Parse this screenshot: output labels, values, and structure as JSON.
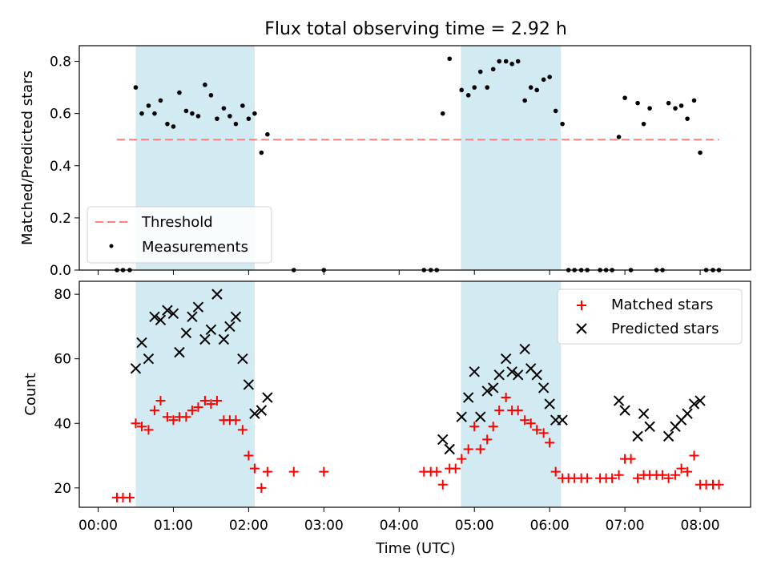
{
  "chart_data": [
    {
      "type": "scatter",
      "title": "Flux total observing time = 2.92 h",
      "ylabel": "Matched/Predicted stars",
      "xlabel": "",
      "xlim": [
        -0.25,
        8.67
      ],
      "ylim": [
        0,
        0.86
      ],
      "yticks": [
        0.0,
        0.2,
        0.4,
        0.6,
        0.8
      ],
      "ytick_labels": [
        "0.0",
        "0.2",
        "0.4",
        "0.6",
        "0.8"
      ],
      "shaded_intervals": [
        [
          0.5,
          2.08
        ],
        [
          4.82,
          6.15
        ]
      ],
      "shade_color": "#add8e6",
      "threshold": {
        "name": "Threshold",
        "value": 0.5,
        "x_range": [
          0.25,
          8.25
        ],
        "color": "#ff7f7f"
      },
      "series": [
        {
          "name": "Measurements",
          "color": "#000000",
          "x": [
            0.25,
            0.33,
            0.42,
            0.5,
            0.58,
            0.67,
            0.75,
            0.83,
            0.92,
            1.0,
            1.08,
            1.17,
            1.25,
            1.33,
            1.42,
            1.5,
            1.58,
            1.67,
            1.75,
            1.83,
            1.92,
            2.0,
            2.08,
            2.17,
            2.25,
            2.6,
            3.0,
            4.33,
            4.42,
            4.5,
            4.58,
            4.67,
            4.83,
            4.92,
            5.0,
            5.08,
            5.17,
            5.25,
            5.33,
            5.42,
            5.5,
            5.58,
            5.67,
            5.75,
            5.83,
            5.92,
            6.0,
            6.08,
            6.17,
            6.25,
            6.33,
            6.42,
            6.5,
            6.67,
            6.75,
            6.83,
            6.92,
            7.0,
            7.08,
            7.17,
            7.25,
            7.33,
            7.42,
            7.5,
            7.58,
            7.67,
            7.75,
            7.83,
            7.92,
            8.0,
            8.08,
            8.17,
            8.25
          ],
          "y": [
            0,
            0,
            0,
            0.7,
            0.6,
            0.63,
            0.6,
            0.65,
            0.56,
            0.55,
            0.68,
            0.61,
            0.6,
            0.59,
            0.71,
            0.67,
            0.58,
            0.62,
            0.59,
            0.56,
            0.63,
            0.58,
            0.6,
            0.45,
            0.52,
            0,
            0,
            0,
            0,
            0,
            0.6,
            0.81,
            0.69,
            0.67,
            0.7,
            0.76,
            0.7,
            0.77,
            0.8,
            0.8,
            0.79,
            0.8,
            0.65,
            0.7,
            0.69,
            0.73,
            0.74,
            0.61,
            0.56,
            0,
            0,
            0,
            0,
            0,
            0,
            0,
            0.51,
            0.66,
            0,
            0.64,
            0.56,
            0.62,
            0,
            0,
            0.64,
            0.62,
            0.63,
            0.58,
            0.65,
            0.45,
            0,
            0,
            0
          ]
        }
      ],
      "legend": {
        "placement": "lower-left",
        "entries": [
          "Threshold",
          "Measurements"
        ]
      }
    },
    {
      "type": "scatter",
      "title": "",
      "ylabel": "Count",
      "xlabel": "Time (UTC)",
      "xlim": [
        -0.25,
        8.67
      ],
      "ylim": [
        14,
        84
      ],
      "yticks": [
        20,
        40,
        60,
        80
      ],
      "ytick_labels": [
        "20",
        "40",
        "60",
        "80"
      ],
      "xticks": [
        0,
        1,
        2,
        3,
        4,
        5,
        6,
        7,
        8
      ],
      "xtick_labels": [
        "00:00",
        "01:00",
        "02:00",
        "03:00",
        "04:00",
        "05:00",
        "06:00",
        "07:00",
        "08:00"
      ],
      "shaded_intervals": [
        [
          0.5,
          2.08
        ],
        [
          4.82,
          6.15
        ]
      ],
      "shade_color": "#add8e6",
      "series": [
        {
          "name": "Matched stars",
          "color": "#ff0000",
          "marker": "+",
          "x": [
            0.25,
            0.33,
            0.42,
            0.5,
            0.58,
            0.67,
            0.75,
            0.83,
            0.92,
            1.0,
            1.08,
            1.17,
            1.25,
            1.33,
            1.42,
            1.5,
            1.58,
            1.67,
            1.75,
            1.83,
            1.92,
            2.0,
            2.08,
            2.17,
            2.25,
            2.6,
            3.0,
            4.33,
            4.42,
            4.5,
            4.58,
            4.67,
            4.75,
            4.83,
            4.92,
            5.0,
            5.08,
            5.17,
            5.25,
            5.33,
            5.42,
            5.5,
            5.58,
            5.67,
            5.75,
            5.83,
            5.92,
            6.0,
            6.08,
            6.17,
            6.25,
            6.33,
            6.42,
            6.5,
            6.67,
            6.75,
            6.83,
            6.92,
            7.0,
            7.08,
            7.17,
            7.25,
            7.33,
            7.42,
            7.5,
            7.58,
            7.67,
            7.75,
            7.83,
            7.92,
            8.0,
            8.08,
            8.17,
            8.25
          ],
          "y": [
            17,
            17,
            17,
            40,
            39,
            38,
            44,
            47,
            42,
            41,
            42,
            42,
            44,
            45,
            47,
            46,
            47,
            41,
            41,
            41,
            38,
            30,
            26,
            20,
            25,
            25,
            25,
            25,
            25,
            25,
            21,
            26,
            26,
            29,
            32,
            39,
            32,
            35,
            39,
            44,
            48,
            44,
            44,
            41,
            40,
            38,
            37,
            34,
            25,
            23,
            23,
            23,
            23,
            23,
            23,
            23,
            23,
            24,
            29,
            29,
            23,
            24,
            24,
            24,
            24,
            23,
            24,
            26,
            25,
            30,
            21,
            21,
            21,
            21
          ]
        },
        {
          "name": "Predicted stars",
          "color": "#000000",
          "marker": "x",
          "x": [
            0.5,
            0.58,
            0.67,
            0.75,
            0.83,
            0.92,
            1.0,
            1.08,
            1.17,
            1.25,
            1.33,
            1.42,
            1.5,
            1.58,
            1.67,
            1.75,
            1.83,
            1.92,
            2.0,
            2.08,
            2.17,
            2.25,
            4.58,
            4.67,
            4.83,
            4.92,
            5.0,
            5.08,
            5.17,
            5.25,
            5.33,
            5.42,
            5.5,
            5.58,
            5.67,
            5.75,
            5.83,
            5.92,
            6.0,
            6.08,
            6.17,
            6.92,
            7.0,
            7.17,
            7.25,
            7.33,
            7.58,
            7.67,
            7.75,
            7.83,
            7.92,
            8.0
          ],
          "y": [
            57,
            65,
            60,
            73,
            72,
            75,
            74,
            62,
            68,
            73,
            76,
            66,
            69,
            80,
            66,
            70,
            73,
            60,
            52,
            43,
            44,
            48,
            35,
            32,
            42,
            48,
            56,
            42,
            50,
            51,
            55,
            60,
            56,
            55,
            63,
            57,
            55,
            51,
            46,
            41,
            41,
            47,
            44,
            36,
            43,
            39,
            36,
            39,
            41,
            43,
            46,
            47
          ]
        }
      ],
      "legend": {
        "placement": "upper-right",
        "entries": [
          "Matched stars",
          "Predicted stars"
        ]
      }
    }
  ]
}
